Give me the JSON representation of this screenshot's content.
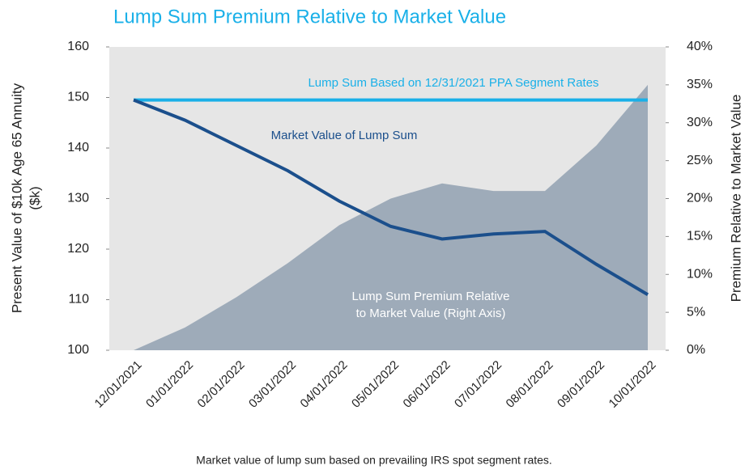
{
  "chart_data": {
    "type": "line",
    "title": "Lump Sum Premium Relative to Market Value",
    "ylabel": [
      "Present Value of $10k Age 65 Annuity",
      "($k)"
    ],
    "y2label": "Premium Relative to Market Value",
    "footnote": "Market value of lump sum based on prevailing IRS spot segment rates.",
    "annotations": [
      "Lump Sum Premium Relative",
      "to Market Value (Right Axis)"
    ],
    "categories": [
      "12/01/2021",
      "01/01/2022",
      "02/01/2022",
      "03/01/2022",
      "04/01/2022",
      "05/01/2022",
      "06/01/2022",
      "07/01/2022",
      "08/01/2022",
      "09/01/2022",
      "10/01/2022"
    ],
    "series": [
      {
        "type": "area",
        "axis": "y2",
        "color": "#9eabb9",
        "values": [
          0,
          3,
          7,
          11.5,
          16.5,
          20,
          22,
          21,
          21,
          27,
          35
        ]
      },
      {
        "name": "Lump Sum Based on 12/31/2021 PPA Segment Rates",
        "type": "line",
        "color": "#1ab0e8",
        "values": [
          149.5,
          149.5,
          149.5,
          149.5,
          149.5,
          149.5,
          149.5,
          149.5,
          149.5,
          149.5,
          149.5
        ]
      },
      {
        "name": "Market Value of Lump Sum",
        "type": "line",
        "color": "#1b4f8c",
        "values": [
          149.5,
          145.5,
          140.5,
          135.5,
          129.5,
          124.5,
          122,
          123,
          123.5,
          117,
          111
        ]
      }
    ],
    "ylim": [
      100,
      160
    ],
    "yticks": [
      100,
      110,
      120,
      130,
      140,
      150,
      160
    ],
    "y2lim": [
      0,
      40
    ],
    "y2ticks": [
      {
        "value": 0,
        "label": "0%"
      },
      {
        "value": 5,
        "label": "5%"
      },
      {
        "value": 10,
        "label": "10%"
      },
      {
        "value": 15,
        "label": "15%"
      },
      {
        "value": 20,
        "label": "20%"
      },
      {
        "value": 25,
        "label": "25%"
      },
      {
        "value": 30,
        "label": "30%"
      },
      {
        "value": 35,
        "label": "35%"
      },
      {
        "value": 40,
        "label": "40%"
      }
    ],
    "background": "#e6e6e6"
  }
}
